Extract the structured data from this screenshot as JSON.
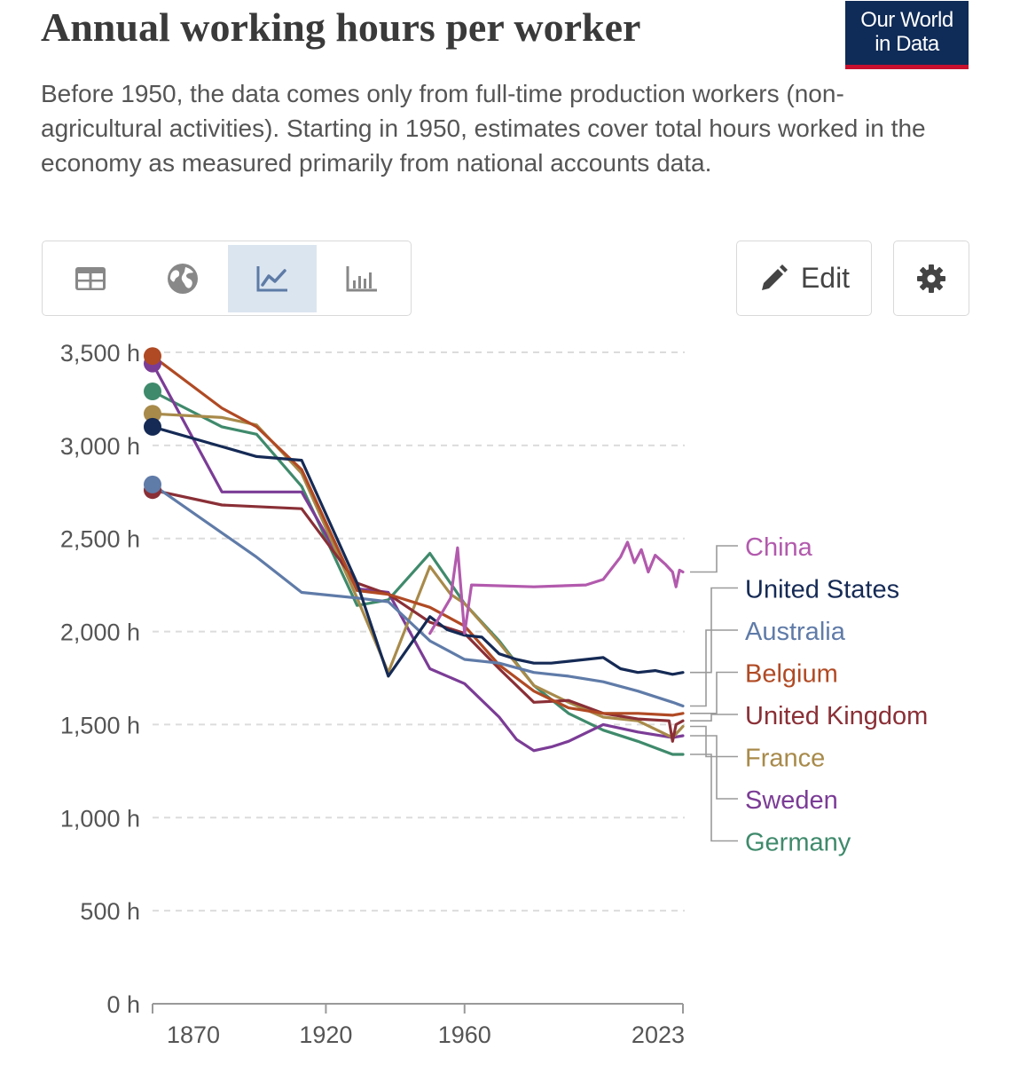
{
  "header": {
    "title": "Annual working hours per worker",
    "subtitle": "Before 1950, the data comes only from full-time production workers (non-agricultural activities). Starting in 1950, estimates cover total hours worked in the economy as measured primarily from national accounts data.",
    "logo_line1": "Our World",
    "logo_line2": "in Data"
  },
  "toolbar": {
    "tabs": [
      {
        "icon": "table-icon",
        "active": false
      },
      {
        "icon": "globe-icon",
        "active": false
      },
      {
        "icon": "line-chart-icon",
        "active": true
      },
      {
        "icon": "bar-chart-icon",
        "active": false
      }
    ],
    "edit_label": "Edit",
    "settings_icon": "gear-icon"
  },
  "colors": {
    "China": "#b25aad",
    "United States": "#152a55",
    "Australia": "#5f7ba8",
    "Belgium": "#b04a24",
    "United Kingdom": "#8a2f36",
    "France": "#a88a4a",
    "Sweden": "#7b3c96",
    "Germany": "#3f8a6c"
  },
  "chart_data": {
    "type": "line",
    "title": "Annual working hours per worker",
    "xlim": [
      1870,
      2023
    ],
    "ylim": [
      0,
      3500
    ],
    "x_ticks": [
      1870,
      1920,
      1960,
      2023
    ],
    "x_tick_labels": [
      "1870",
      "1920",
      "1960",
      "2023"
    ],
    "y_ticks": [
      0,
      500,
      1000,
      1500,
      2000,
      2500,
      3000,
      3500
    ],
    "y_tick_labels": [
      "0 h",
      "500 h",
      "1,000 h",
      "1,500 h",
      "2,000 h",
      "2,500 h",
      "3,000 h",
      "3,500 h"
    ],
    "grid": true,
    "legend": "right, labels at line ends",
    "series": [
      {
        "name": "China",
        "points": [
          [
            1950,
            1990
          ],
          [
            1956,
            2180
          ],
          [
            1958,
            2450
          ],
          [
            1960,
            1990
          ],
          [
            1962,
            2250
          ],
          [
            1980,
            2240
          ],
          [
            1995,
            2250
          ],
          [
            2000,
            2280
          ],
          [
            2005,
            2400
          ],
          [
            2007,
            2480
          ],
          [
            2009,
            2370
          ],
          [
            2011,
            2440
          ],
          [
            2013,
            2320
          ],
          [
            2015,
            2410
          ],
          [
            2018,
            2360
          ],
          [
            2020,
            2320
          ],
          [
            2021,
            2240
          ],
          [
            2022,
            2330
          ],
          [
            2023,
            2320
          ]
        ]
      },
      {
        "name": "United States",
        "points": [
          [
            1870,
            3100
          ],
          [
            1900,
            2940
          ],
          [
            1913,
            2920
          ],
          [
            1929,
            2260
          ],
          [
            1938,
            1760
          ],
          [
            1950,
            2080
          ],
          [
            1955,
            2010
          ],
          [
            1960,
            1980
          ],
          [
            1965,
            1970
          ],
          [
            1970,
            1880
          ],
          [
            1975,
            1850
          ],
          [
            1980,
            1830
          ],
          [
            1985,
            1830
          ],
          [
            1990,
            1840
          ],
          [
            1995,
            1850
          ],
          [
            2000,
            1860
          ],
          [
            2005,
            1800
          ],
          [
            2010,
            1780
          ],
          [
            2015,
            1790
          ],
          [
            2020,
            1770
          ],
          [
            2023,
            1780
          ]
        ]
      },
      {
        "name": "Australia",
        "points": [
          [
            1870,
            2790
          ],
          [
            1900,
            2400
          ],
          [
            1913,
            2210
          ],
          [
            1929,
            2180
          ],
          [
            1938,
            2160
          ],
          [
            1950,
            1950
          ],
          [
            1960,
            1850
          ],
          [
            1970,
            1830
          ],
          [
            1980,
            1780
          ],
          [
            1990,
            1760
          ],
          [
            2000,
            1730
          ],
          [
            2010,
            1680
          ],
          [
            2020,
            1620
          ],
          [
            2023,
            1600
          ]
        ]
      },
      {
        "name": "Belgium",
        "points": [
          [
            1870,
            3480
          ],
          [
            1890,
            3200
          ],
          [
            1900,
            3100
          ],
          [
            1913,
            2870
          ],
          [
            1929,
            2220
          ],
          [
            1938,
            2200
          ],
          [
            1950,
            2130
          ],
          [
            1960,
            2030
          ],
          [
            1970,
            1820
          ],
          [
            1980,
            1680
          ],
          [
            1990,
            1590
          ],
          [
            2000,
            1560
          ],
          [
            2010,
            1560
          ],
          [
            2020,
            1550
          ],
          [
            2023,
            1560
          ]
        ]
      },
      {
        "name": "United Kingdom",
        "points": [
          [
            1870,
            2760
          ],
          [
            1890,
            2680
          ],
          [
            1913,
            2660
          ],
          [
            1929,
            2260
          ],
          [
            1938,
            2200
          ],
          [
            1950,
            2050
          ],
          [
            1960,
            1990
          ],
          [
            1970,
            1800
          ],
          [
            1980,
            1620
          ],
          [
            1990,
            1630
          ],
          [
            2000,
            1560
          ],
          [
            2010,
            1530
          ],
          [
            2019,
            1520
          ],
          [
            2020,
            1410
          ],
          [
            2021,
            1500
          ],
          [
            2023,
            1520
          ]
        ]
      },
      {
        "name": "France",
        "points": [
          [
            1870,
            3170
          ],
          [
            1890,
            3150
          ],
          [
            1900,
            3110
          ],
          [
            1913,
            2850
          ],
          [
            1929,
            2180
          ],
          [
            1938,
            1780
          ],
          [
            1950,
            2350
          ],
          [
            1956,
            2200
          ],
          [
            1960,
            2150
          ],
          [
            1970,
            1940
          ],
          [
            1980,
            1710
          ],
          [
            1990,
            1620
          ],
          [
            2000,
            1540
          ],
          [
            2010,
            1520
          ],
          [
            2020,
            1430
          ],
          [
            2023,
            1490
          ]
        ]
      },
      {
        "name": "Sweden",
        "points": [
          [
            1870,
            3440
          ],
          [
            1890,
            2750
          ],
          [
            1913,
            2750
          ],
          [
            1929,
            2230
          ],
          [
            1938,
            2210
          ],
          [
            1950,
            1800
          ],
          [
            1960,
            1720
          ],
          [
            1970,
            1540
          ],
          [
            1975,
            1420
          ],
          [
            1980,
            1360
          ],
          [
            1985,
            1380
          ],
          [
            1990,
            1410
          ],
          [
            2000,
            1500
          ],
          [
            2010,
            1460
          ],
          [
            2020,
            1430
          ],
          [
            2023,
            1440
          ]
        ]
      },
      {
        "name": "Germany",
        "points": [
          [
            1870,
            3290
          ],
          [
            1890,
            3100
          ],
          [
            1900,
            3060
          ],
          [
            1913,
            2780
          ],
          [
            1929,
            2140
          ],
          [
            1938,
            2170
          ],
          [
            1950,
            2420
          ],
          [
            1960,
            2150
          ],
          [
            1970,
            1950
          ],
          [
            1980,
            1710
          ],
          [
            1990,
            1560
          ],
          [
            2000,
            1470
          ],
          [
            2010,
            1410
          ],
          [
            2020,
            1340
          ],
          [
            2023,
            1340
          ]
        ]
      }
    ]
  }
}
